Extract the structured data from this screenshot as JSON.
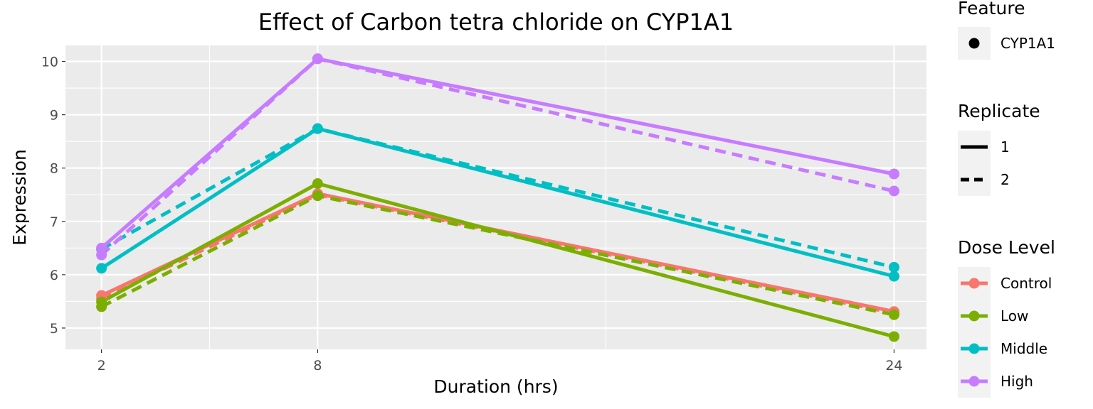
{
  "chart_data": {
    "type": "line",
    "title": "Effect of Carbon tetra chloride on CYP1A1",
    "xlabel": "Duration (hrs)",
    "ylabel": "Expression",
    "x": [
      2,
      8,
      24
    ],
    "x_ticks": [
      "2",
      "8",
      "24"
    ],
    "y_ticks": [
      "5",
      "6",
      "7",
      "8",
      "9",
      "10"
    ],
    "xlim": [
      1,
      24.9
    ],
    "ylim": [
      4.6,
      10.3
    ],
    "grid": true,
    "legend_position": "right",
    "colors": {
      "Control": "#F8766D",
      "Low": "#7CAE00",
      "Middle": "#00BFC4",
      "High": "#C77CFF"
    },
    "legends": {
      "feature": {
        "title": "Feature",
        "items": [
          "CYP1A1"
        ]
      },
      "replicate": {
        "title": "Replicate",
        "items": [
          "1",
          "2"
        ]
      },
      "dose": {
        "title": "Dose Level",
        "items": [
          "Control",
          "Low",
          "Middle",
          "High"
        ]
      }
    },
    "series": [
      {
        "dose": "Control",
        "replicate": "1",
        "values": [
          5.61,
          7.52,
          5.31
        ]
      },
      {
        "dose": "Control",
        "replicate": "2",
        "values": [
          5.55,
          7.5,
          5.28
        ]
      },
      {
        "dose": "Low",
        "replicate": "1",
        "values": [
          5.49,
          7.71,
          4.84
        ]
      },
      {
        "dose": "Low",
        "replicate": "2",
        "values": [
          5.4,
          7.48,
          5.25
        ]
      },
      {
        "dose": "Middle",
        "replicate": "1",
        "values": [
          6.12,
          8.74,
          5.97
        ]
      },
      {
        "dose": "Middle",
        "replicate": "2",
        "values": [
          6.48,
          8.74,
          6.14
        ]
      },
      {
        "dose": "High",
        "replicate": "1",
        "values": [
          6.5,
          10.05,
          7.89
        ]
      },
      {
        "dose": "High",
        "replicate": "2",
        "values": [
          6.37,
          10.05,
          7.57
        ]
      }
    ]
  }
}
